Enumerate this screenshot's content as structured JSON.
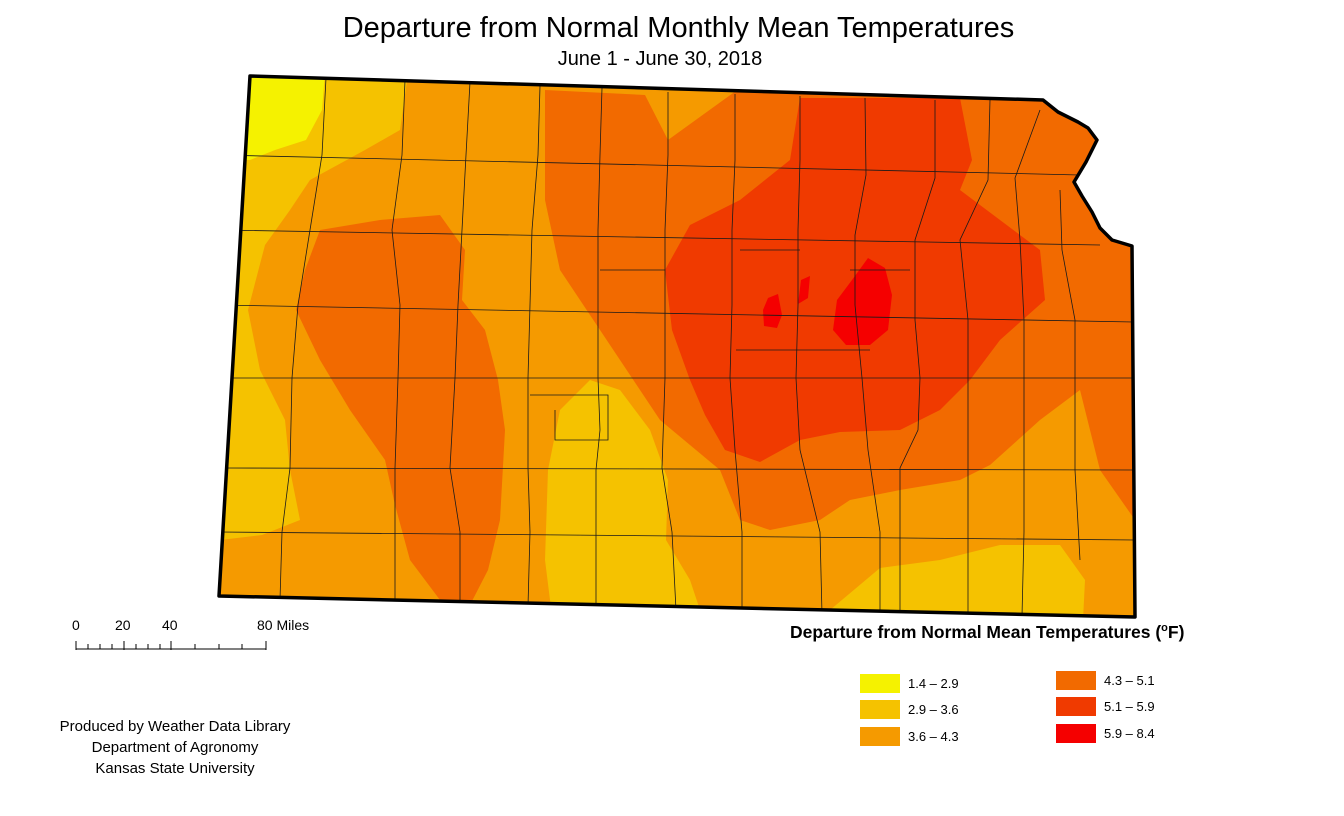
{
  "title": "Departure from Normal Monthly Mean Temperatures",
  "subtitle": "June 1 - June 30, 2018",
  "scale_bar": {
    "ticks": [
      "0",
      "20",
      "40",
      "80 Miles"
    ]
  },
  "legend": {
    "title": "Departure from Normal Mean Temperatures (",
    "unit_super": "o",
    "unit_tail": "F)",
    "items": [
      {
        "label": "1.4 – 2.9",
        "color": "#f5f200"
      },
      {
        "label": "2.9 – 3.6",
        "color": "#f5c200"
      },
      {
        "label": "3.6 – 4.3",
        "color": "#f59a00"
      },
      {
        "label": "4.3 – 5.1",
        "color": "#f26a00"
      },
      {
        "label": "5.1 – 5.9",
        "color": "#f03a00"
      },
      {
        "label": "5.9 – 8.4",
        "color": "#f50000"
      }
    ]
  },
  "credits": [
    "Produced by Weather Data Library",
    "Department of Agronomy",
    "Kansas State University"
  ]
}
